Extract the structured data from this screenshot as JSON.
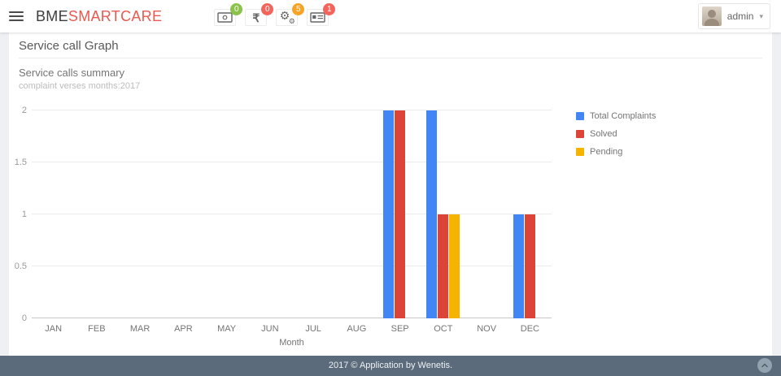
{
  "header": {
    "logo": {
      "part1": "BME",
      "part2": "SMARTCARE",
      "accent_color": "#e85a50"
    },
    "icons": [
      {
        "name": "cash",
        "badge": "0",
        "badge_color": "#8bc34a"
      },
      {
        "name": "rupee",
        "badge": "0",
        "badge_color": "#f4645c"
      },
      {
        "name": "gears",
        "badge": "5",
        "badge_color": "#f8a326"
      },
      {
        "name": "id-card",
        "badge": "1",
        "badge_color": "#f4645c"
      }
    ],
    "user": {
      "name": "admin"
    }
  },
  "page": {
    "title": "Service call Graph"
  },
  "chart_data": {
    "type": "bar",
    "title": "Service calls summary",
    "subtitle": "complaint verses months:2017",
    "xlabel": "Month",
    "ylabel": "",
    "categories": [
      "JAN",
      "FEB",
      "MAR",
      "APR",
      "MAY",
      "JUN",
      "JUL",
      "AUG",
      "SEP",
      "OCT",
      "NOV",
      "DEC"
    ],
    "series": [
      {
        "name": "Total Complaints",
        "color": "#4285f4",
        "values": [
          0,
          0,
          0,
          0,
          0,
          0,
          0,
          0,
          2,
          2,
          0,
          1
        ]
      },
      {
        "name": "Solved",
        "color": "#db4437",
        "values": [
          0,
          0,
          0,
          0,
          0,
          0,
          0,
          0,
          2,
          1,
          0,
          1
        ]
      },
      {
        "name": "Pending",
        "color": "#f4b400",
        "values": [
          0,
          0,
          0,
          0,
          0,
          0,
          0,
          0,
          0,
          1,
          0,
          0
        ]
      }
    ],
    "ylim": [
      0,
      2
    ],
    "yticks": [
      0,
      0.5,
      1,
      1.5,
      2
    ],
    "grid": true,
    "legend_position": "right"
  },
  "footer": {
    "text": "2017 © Application by Wenetis.",
    "bg_color": "#5b6b7c"
  }
}
